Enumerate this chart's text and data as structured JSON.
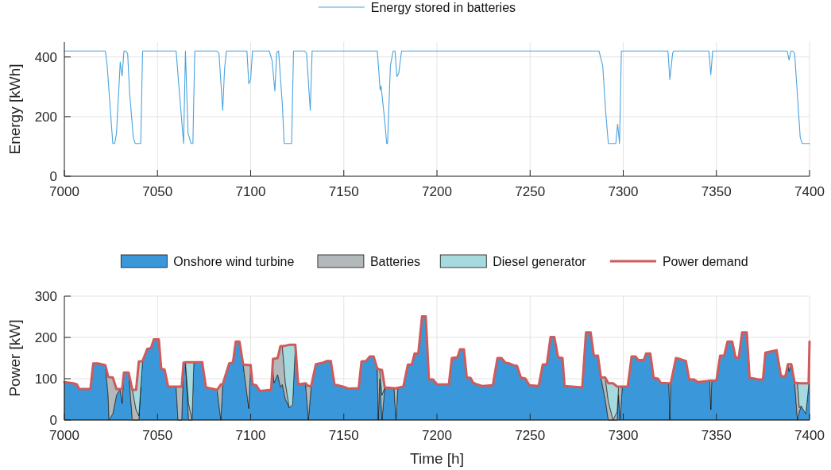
{
  "chart_data": [
    {
      "type": "line",
      "ylabel": "Energy [kWh]",
      "xlim": [
        7000,
        7400
      ],
      "xticks": [
        7000,
        7050,
        7100,
        7150,
        7200,
        7250,
        7300,
        7350,
        7400
      ],
      "ylim": [
        0,
        450
      ],
      "yticks": [
        0,
        200,
        400
      ],
      "grid": true,
      "legend": "top",
      "series": [
        {
          "name": "Energy stored in batteries",
          "color": "#4aa3df",
          "x": [
            7000,
            7022,
            7023,
            7026,
            7027,
            7028,
            7030,
            7031,
            7032,
            7033,
            7034,
            7035,
            7037,
            7038,
            7041,
            7042,
            7060,
            7061.4,
            7064,
            7065,
            7066.4,
            7068,
            7069,
            7070,
            7082,
            7083,
            7085,
            7086,
            7087,
            7098,
            7099,
            7100,
            7101,
            7110,
            7111.5,
            7113,
            7114,
            7115,
            7117,
            7118,
            7122,
            7123,
            7129,
            7130,
            7132,
            7133,
            7168,
            7169.5,
            7170,
            7172,
            7173,
            7173.5,
            7175,
            7176.5,
            7177.5,
            7178.5,
            7179.5,
            7181,
            7287,
            7289,
            7290.5,
            7292,
            7296,
            7297,
            7298,
            7299,
            7324,
            7325,
            7326.5,
            7327,
            7346,
            7347,
            7348,
            7388,
            7389,
            7390,
            7391,
            7392,
            7395,
            7396,
            7400
          ],
          "values": [
            420,
            420,
            370,
            110,
            110,
            144,
            383,
            336,
            420,
            420,
            410,
            281,
            131,
            110,
            110,
            420,
            420,
            308,
            110,
            420,
            144,
            110,
            110,
            420,
            420,
            412,
            221,
            361,
            420,
            420,
            310,
            325,
            420,
            420,
            388,
            286,
            415,
            420,
            241,
            110,
            110,
            420,
            420,
            412,
            221,
            420,
            420,
            290,
            303,
            184,
            110,
            110,
            370,
            420,
            420,
            334,
            346,
            420,
            420,
            370,
            221,
            110,
            110,
            175,
            110,
            420,
            420,
            324,
            412,
            420,
            420,
            340,
            420,
            420,
            390,
            420,
            420,
            412,
            130,
            110,
            110
          ]
        }
      ]
    },
    {
      "type": "area",
      "stacked": true,
      "xlabel": "Time [h]",
      "ylabel": "Power [kW]",
      "xlim": [
        7000,
        7400
      ],
      "xticks": [
        7000,
        7050,
        7100,
        7150,
        7200,
        7250,
        7300,
        7350,
        7400
      ],
      "ylim": [
        0,
        300
      ],
      "yticks": [
        0,
        100,
        200,
        300
      ],
      "grid": true,
      "legend": "top",
      "x": [
        7000,
        7004.7,
        7006.7,
        7008,
        7014,
        7015.5,
        7018,
        7022,
        7023.5,
        7024,
        7026,
        7028,
        7030,
        7031,
        7032,
        7034.5,
        7036.5,
        7038.5,
        7040,
        7041,
        7042,
        7044.5,
        7046.5,
        7048,
        7050.7,
        7052,
        7053.8,
        7055.7,
        7060,
        7061,
        7063,
        7064,
        7065,
        7066.7,
        7068.5,
        7069.5,
        7074,
        7076,
        7082,
        7084,
        7085,
        7088.5,
        7090.5,
        7092,
        7094,
        7096,
        7099,
        7100,
        7101,
        7103,
        7105,
        7111,
        7112,
        7112.5,
        7114.5,
        7116,
        7117,
        7118.6,
        7120.7,
        7122.5,
        7124,
        7125.5,
        7129.5,
        7131,
        7132.5,
        7135,
        7139,
        7141,
        7143,
        7145,
        7149.5,
        7152.4,
        7158,
        7159.5,
        7162,
        7164,
        7166,
        7168,
        7168.5,
        7169.3,
        7170.5,
        7172,
        7177,
        7178,
        7179,
        7182,
        7184.4,
        7186.5,
        7188,
        7190,
        7192,
        7194,
        7195.7,
        7197.9,
        7200,
        7206.4,
        7208,
        7211,
        7212.4,
        7214.5,
        7216,
        7218,
        7219.5,
        7221.6,
        7224.4,
        7230,
        7232.5,
        7234.6,
        7236.7,
        7238.9,
        7241,
        7243,
        7245,
        7247.5,
        7249.6,
        7254.6,
        7256.8,
        7259,
        7261,
        7263,
        7265,
        7267.4,
        7268.5,
        7278,
        7280,
        7282.5,
        7284.2,
        7286.4,
        7288,
        7290.3,
        7292,
        7294.5,
        7296.7,
        7297.5,
        7298.3,
        7299.5,
        7302.4,
        7304.5,
        7306.6,
        7308,
        7311,
        7312.3,
        7314.5,
        7316.3,
        7318.7,
        7320.1,
        7324.5,
        7325,
        7325.5,
        7328.3,
        7330.8,
        7333.6,
        7335.4,
        7338,
        7340,
        7344.4,
        7346.5,
        7347,
        7347.5,
        7350,
        7352,
        7354.2,
        7356,
        7358.5,
        7360.3,
        7362,
        7363.8,
        7366.3,
        7367.8,
        7370.6,
        7372.8,
        7375,
        7376.3,
        7379.2,
        7382.3,
        7384.6,
        7387,
        7388.4,
        7389,
        7390.2,
        7392,
        7393.5,
        7394.5,
        7395.5,
        7398,
        7399.5,
        7400
      ],
      "series": [
        {
          "name": "Onshore wind turbine",
          "color": "#3a98da",
          "values": [
            92,
            89,
            86,
            75,
            75,
            137,
            137,
            133,
            60,
            0,
            15,
            60,
            75,
            40,
            115,
            115,
            0,
            0,
            0,
            80,
            143,
            172,
            174,
            195,
            195,
            124,
            122,
            81,
            81,
            0,
            0,
            139,
            140,
            0,
            0,
            140,
            140,
            79,
            73,
            0,
            86,
            137,
            139,
            190,
            190,
            134,
            28,
            133,
            86,
            84,
            70,
            73,
            120,
            90,
            110,
            80,
            86,
            51,
            30,
            37,
            182,
            86,
            89,
            0,
            82,
            135,
            139,
            143,
            143,
            86,
            81,
            76,
            77,
            142,
            143,
            154,
            154,
            124,
            0,
            100,
            0,
            79,
            77,
            0,
            78,
            81,
            134,
            134,
            161,
            161,
            251,
            251,
            98,
            98,
            86,
            86,
            150,
            152,
            171,
            171,
            103,
            102,
            90,
            86,
            82,
            84,
            150,
            150,
            139,
            137,
            133,
            131,
            103,
            100,
            84,
            82,
            134,
            135,
            201,
            201,
            152,
            150,
            82,
            79,
            212,
            212,
            156,
            156,
            103,
            50,
            0,
            0,
            0,
            60,
            0,
            81,
            81,
            154,
            154,
            145,
            145,
            161,
            161,
            102,
            100,
            90,
            89,
            0,
            89,
            150,
            147,
            143,
            98,
            98,
            92,
            94,
            95,
            25,
            95,
            95,
            156,
            156,
            190,
            190,
            151,
            151,
            212,
            212,
            102,
            100,
            98,
            98,
            163,
            166,
            169,
            107,
            105,
            135,
            118,
            135,
            90,
            0,
            20,
            34,
            15,
            82,
            190
          ]
        },
        {
          "name": "Batteries",
          "color": "#b3b9ba",
          "values": [
            null,
            null,
            null,
            null,
            null,
            null,
            null,
            0,
            45,
            104,
            88,
            15,
            0,
            35,
            0,
            0,
            73,
            25,
            10,
            0,
            null,
            null,
            null,
            null,
            null,
            null,
            null,
            null,
            0,
            81,
            81,
            0,
            0,
            40,
            0,
            null,
            null,
            null,
            0,
            86,
            0,
            null,
            null,
            null,
            null,
            0,
            105,
            0,
            null,
            null,
            null,
            0,
            28,
            58,
            40,
            99,
            93,
            40,
            0,
            null,
            null,
            null,
            0,
            82,
            0,
            null,
            null,
            null,
            null,
            null,
            null,
            null,
            null,
            null,
            null,
            null,
            null,
            0,
            124,
            22,
            60,
            0,
            0,
            77,
            0,
            null,
            null,
            null,
            null,
            null,
            null,
            null,
            null,
            null,
            null,
            null,
            null,
            null,
            null,
            null,
            null,
            null,
            null,
            null,
            null,
            null,
            null,
            null,
            null,
            null,
            null,
            null,
            null,
            null,
            null,
            null,
            null,
            null,
            null,
            null,
            null,
            null,
            null,
            null,
            null,
            null,
            null,
            null,
            0,
            53,
            45,
            0,
            20,
            21,
            81,
            0,
            null,
            null,
            null,
            null,
            null,
            null,
            null,
            null,
            null,
            null,
            0,
            89,
            0,
            null,
            null,
            null,
            null,
            null,
            null,
            null,
            0,
            70,
            0,
            null,
            null,
            null,
            null,
            null,
            null,
            null,
            null,
            null,
            null,
            null,
            null,
            null,
            null,
            null,
            null,
            null,
            null,
            0,
            17,
            0,
            0,
            90,
            10,
            0,
            null,
            null,
            null
          ]
        },
        {
          "name": "Diesel generator",
          "color": "#a7dade",
          "values": [
            null,
            null,
            null,
            null,
            null,
            null,
            null,
            null,
            null,
            null,
            null,
            null,
            null,
            null,
            null,
            null,
            0,
            48,
            132,
            62,
            0,
            null,
            null,
            null,
            null,
            null,
            null,
            null,
            null,
            null,
            null,
            null,
            0,
            100,
            140,
            0,
            null,
            null,
            null,
            null,
            null,
            null,
            null,
            null,
            null,
            null,
            null,
            null,
            null,
            null,
            null,
            null,
            null,
            null,
            null,
            null,
            0,
            89,
            152,
            145,
            0,
            null,
            null,
            null,
            null,
            null,
            null,
            null,
            null,
            null,
            null,
            null,
            null,
            null,
            null,
            null,
            null,
            null,
            null,
            0,
            61,
            0,
            null,
            null,
            null,
            null,
            null,
            null,
            null,
            null,
            null,
            null,
            null,
            null,
            null,
            null,
            null,
            null,
            null,
            null,
            null,
            null,
            null,
            null,
            null,
            null,
            null,
            null,
            null,
            null,
            null,
            null,
            null,
            null,
            null,
            null,
            null,
            null,
            null,
            null,
            null,
            null,
            null,
            null,
            null,
            null,
            null,
            null,
            null,
            0,
            44,
            89,
            61,
            0,
            null,
            null,
            null,
            null,
            null,
            null,
            null,
            null,
            null,
            null,
            null,
            null,
            null,
            null,
            null,
            null,
            null,
            null,
            null,
            null,
            null,
            null,
            null,
            null,
            null,
            null,
            null,
            null,
            null,
            null,
            null,
            null,
            null,
            null,
            null,
            null,
            null,
            null,
            null,
            null,
            null,
            null,
            null,
            null,
            null,
            null,
            null,
            0,
            59,
            55,
            74,
            7,
            0
          ]
        },
        {
          "name": "Power demand",
          "type": "line",
          "color": "#d05a5a",
          "values": [
            92,
            89,
            86,
            75,
            75,
            137,
            137,
            133,
            105,
            104,
            103,
            75,
            75,
            75,
            115,
            115,
            73,
            73,
            142,
            142,
            143,
            172,
            174,
            195,
            195,
            124,
            122,
            81,
            81,
            81,
            81,
            139,
            140,
            140,
            140,
            140,
            140,
            79,
            73,
            86,
            86,
            137,
            139,
            190,
            190,
            134,
            133,
            133,
            86,
            84,
            70,
            73,
            148,
            148,
            150,
            179,
            179,
            180,
            182,
            182,
            182,
            86,
            89,
            82,
            82,
            135,
            139,
            143,
            143,
            86,
            81,
            76,
            77,
            142,
            143,
            154,
            154,
            124,
            124,
            122,
            121,
            79,
            77,
            77,
            78,
            81,
            134,
            134,
            161,
            161,
            251,
            251,
            98,
            98,
            86,
            86,
            150,
            152,
            171,
            171,
            103,
            102,
            90,
            86,
            82,
            84,
            150,
            150,
            139,
            137,
            133,
            131,
            103,
            100,
            84,
            82,
            134,
            135,
            201,
            201,
            152,
            150,
            82,
            79,
            212,
            212,
            156,
            156,
            103,
            103,
            89,
            89,
            81,
            81,
            81,
            81,
            81,
            154,
            154,
            145,
            145,
            161,
            161,
            102,
            100,
            90,
            89,
            89,
            89,
            150,
            147,
            143,
            98,
            98,
            92,
            94,
            95,
            95,
            95,
            95,
            156,
            156,
            190,
            190,
            151,
            151,
            212,
            212,
            102,
            100,
            98,
            98,
            163,
            166,
            169,
            107,
            105,
            135,
            135,
            135,
            90,
            90,
            89,
            89,
            89,
            89,
            190
          ]
        }
      ]
    }
  ]
}
